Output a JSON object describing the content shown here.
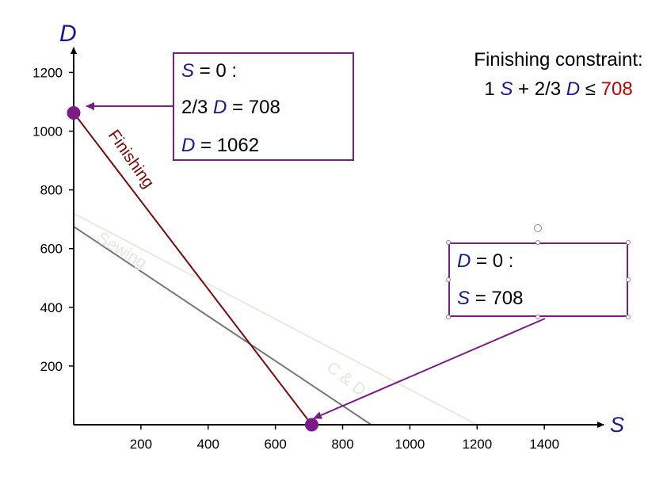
{
  "chart_data": {
    "type": "line",
    "xlabel": "S",
    "ylabel": "D",
    "xlim": [
      0,
      1550
    ],
    "ylim": [
      0,
      1290
    ],
    "xticks": [
      200,
      400,
      600,
      800,
      1000,
      1200,
      1400
    ],
    "yticks": [
      200,
      400,
      600,
      800,
      1000,
      1200
    ],
    "grid": false,
    "series": [
      {
        "name": "Finishing",
        "x": [
          0,
          708
        ],
        "y": [
          1062,
          0
        ],
        "color": "#7b0b0b"
      },
      {
        "name": "Sewing",
        "x": [
          0,
          885
        ],
        "y": [
          675,
          0
        ],
        "color": "#777777"
      },
      {
        "name": "C & D",
        "x": [
          0,
          1200
        ],
        "y": [
          720,
          0
        ],
        "color": "#e9e9de"
      }
    ],
    "points": [
      {
        "x": 0,
        "y": 1062
      },
      {
        "x": 708,
        "y": 0
      }
    ],
    "point_color": "#7b1c86",
    "annotation_color": "#7b1c86"
  },
  "constraint": {
    "title": "Finishing constraint:",
    "coef_s": "1",
    "var_s": "S",
    "plus": "+",
    "coef_d": "2/3",
    "var_d": "D",
    "op": "≤",
    "rhs": "708"
  },
  "box_d_intercept": {
    "line1_var": "S",
    "line1_text": "= 0 :",
    "line2_coef": "2/3",
    "line2_var": "D",
    "line2_text": "= 708",
    "line3_var": "D",
    "line3_text": "= 1062"
  },
  "box_s_intercept": {
    "line1_var": "D",
    "line1_text": "= 0 :",
    "line2_var": "S",
    "line2_text": "= 708"
  }
}
